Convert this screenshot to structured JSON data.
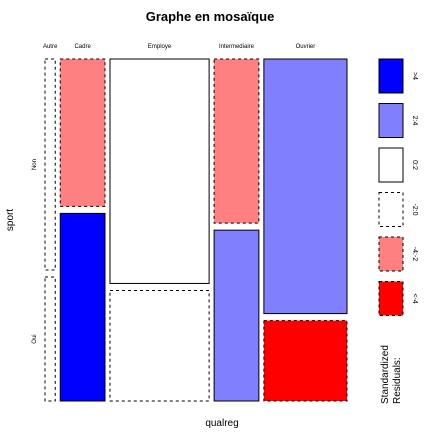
{
  "chart_data": {
    "type": "mosaic",
    "title": "Graphe en mosaïque",
    "xlabel": "qualreg",
    "ylabel": "sport",
    "columns": [
      {
        "name": "Autre",
        "share": 0.032
      },
      {
        "name": "Cadre",
        "share": 0.14
      },
      {
        "name": "Employe",
        "share": 0.31
      },
      {
        "name": "Intermediaire",
        "share": 0.14
      },
      {
        "name": "Ouvrier",
        "share": 0.26
      }
    ],
    "rows": [
      "Non",
      "Oui"
    ],
    "cells": [
      {
        "column": "Autre",
        "non_share": 0.63,
        "non_class": "-2:0",
        "oui_class": "-2:0"
      },
      {
        "column": "Cadre",
        "non_share": 0.44,
        "non_class": "-4:-2",
        "oui_class": ">4"
      },
      {
        "column": "Employe",
        "non_share": 0.67,
        "non_class": "0:2",
        "oui_class": "-2:0"
      },
      {
        "column": "Intermediaire",
        "non_share": 0.49,
        "non_class": "-4:-2",
        "oui_class": "2:4"
      },
      {
        "column": "Ouvrier",
        "non_share": 0.76,
        "non_class": "2:4",
        "oui_class": "<-4"
      }
    ],
    "legend": {
      "title_lines": [
        "Standardized",
        "Residuals:"
      ],
      "placement": "right",
      "items": [
        {
          "label": ">4",
          "key": ">4",
          "fill": "#0000ff",
          "dashed": false
        },
        {
          "label": "2:4",
          "key": "2:4",
          "fill": "#8080ff",
          "dashed": false
        },
        {
          "label": "0:2",
          "key": "0:2",
          "fill": "#ffffff",
          "dashed": false
        },
        {
          "label": "-2:0",
          "key": "-2:0",
          "fill": "#ffffff",
          "dashed": true
        },
        {
          "label": "-4:-2",
          "key": "-4:-2",
          "fill": "#ff8080",
          "dashed": true
        },
        {
          "label": "<-4",
          "key": "<-4",
          "fill": "#ff0000",
          "dashed": true
        }
      ]
    }
  }
}
